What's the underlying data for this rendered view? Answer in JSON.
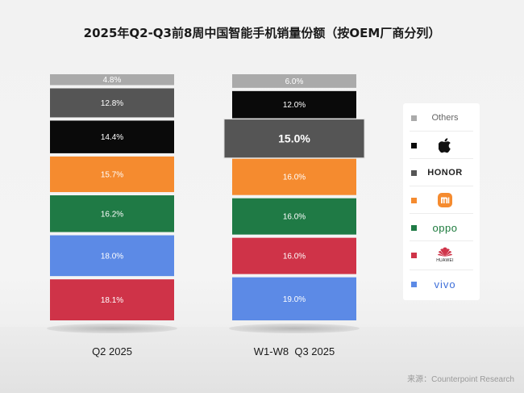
{
  "title": "2025年Q2-Q3前8周中国智能手机销量份额（按OEM厂商分列）",
  "source": "来源：Counterpoint Research",
  "colors": {
    "others": "#aaaaaa",
    "apple": "#0a0a0a",
    "honor": "#555555",
    "xiaomi": "#f58b2f",
    "oppo": "#1f7a45",
    "huawei": "#cf3348",
    "vivo": "#5c8ae6"
  },
  "legend": [
    {
      "key": "others",
      "label": "Others",
      "color": "#aaaaaa"
    },
    {
      "key": "apple",
      "label": "",
      "icon": "apple-icon",
      "color": "#0a0a0a"
    },
    {
      "key": "honor",
      "label": "HONOR",
      "color": "#555555"
    },
    {
      "key": "xiaomi",
      "label": "",
      "icon": "xiaomi-mi-icon",
      "color": "#f58b2f"
    },
    {
      "key": "oppo",
      "label": "oppo",
      "color": "#1f7a45"
    },
    {
      "key": "huawei",
      "label": "HUAWEI",
      "icon": "huawei-flower-icon",
      "color": "#cf3348"
    },
    {
      "key": "vivo",
      "label": "vivo",
      "color": "#5c8ae6"
    }
  ],
  "chart_data": {
    "type": "bar",
    "stacked": true,
    "title": "2025年Q2-Q3前8周中国智能手机销量份额（按OEM厂商分列）",
    "categories": [
      "Q2 2025",
      "W1-W8  Q3 2025"
    ],
    "unit": "%",
    "legend_position": "right",
    "columns": [
      {
        "name": "Q2 2025",
        "segments": [
          {
            "brand": "others",
            "value": 4.8,
            "label": "4.8%"
          },
          {
            "brand": "honor",
            "value": 12.8,
            "label": "12.8%"
          },
          {
            "brand": "apple",
            "value": 14.4,
            "label": "14.4%"
          },
          {
            "brand": "xiaomi",
            "value": 15.7,
            "label": "15.7%"
          },
          {
            "brand": "oppo",
            "value": 16.2,
            "label": "16.2%"
          },
          {
            "brand": "vivo",
            "value": 18.0,
            "label": "18.0%"
          },
          {
            "brand": "huawei",
            "value": 18.1,
            "label": "18.1%"
          }
        ]
      },
      {
        "name": "W1-W8  Q3 2025",
        "segments": [
          {
            "brand": "others",
            "value": 6.0,
            "label": "6.0%"
          },
          {
            "brand": "apple",
            "value": 12.0,
            "label": "12.0%"
          },
          {
            "brand": "honor",
            "value": 15.0,
            "label": "15.0%",
            "highlight": true
          },
          {
            "brand": "xiaomi",
            "value": 16.0,
            "label": "16.0%"
          },
          {
            "brand": "oppo",
            "value": 16.0,
            "label": "16.0%"
          },
          {
            "brand": "huawei",
            "value": 16.0,
            "label": "16.0%"
          },
          {
            "brand": "vivo",
            "value": 19.0,
            "label": "19.0%"
          }
        ]
      }
    ]
  }
}
